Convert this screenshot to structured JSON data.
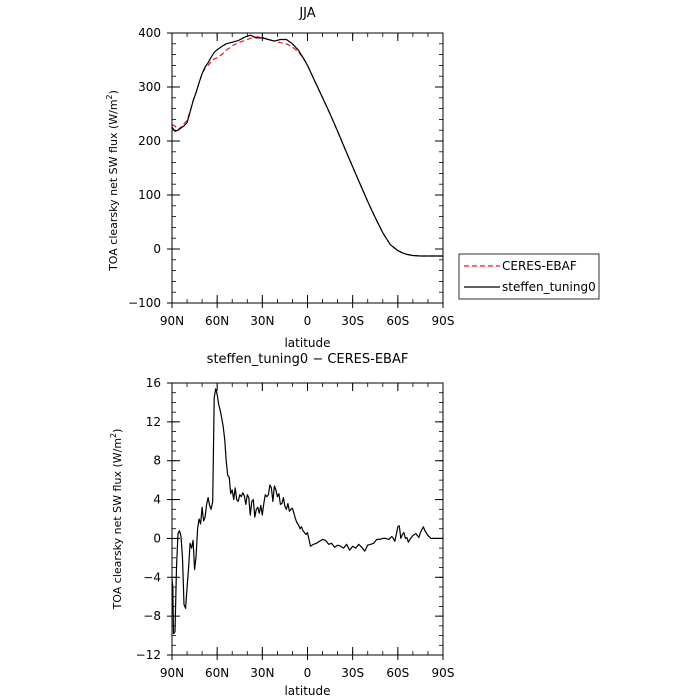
{
  "chart_data": [
    {
      "type": "line",
      "title": "JJA",
      "xlabel": "latitude",
      "ylabel_text": "TOA clearsky net SW flux (W/m",
      "ylabel_sup": "2",
      "ylabel_close": ")",
      "xlim": [
        90,
        -90
      ],
      "ylim": [
        -100,
        400
      ],
      "x_ticks": [
        {
          "value": 90,
          "label": "90N"
        },
        {
          "value": 60,
          "label": "60N"
        },
        {
          "value": 30,
          "label": "30N"
        },
        {
          "value": 0,
          "label": "0"
        },
        {
          "value": -30,
          "label": "30S"
        },
        {
          "value": -60,
          "label": "60S"
        },
        {
          "value": -90,
          "label": "90S"
        }
      ],
      "y_ticks": [
        {
          "value": -100,
          "label": "−100"
        },
        {
          "value": 0,
          "label": "0"
        },
        {
          "value": 100,
          "label": "100"
        },
        {
          "value": 200,
          "label": "200"
        },
        {
          "value": 300,
          "label": "300"
        },
        {
          "value": 400,
          "label": "400"
        }
      ],
      "legend_placement": "right",
      "series": [
        {
          "name": "CERES-EBAF",
          "color": "#e8141e",
          "style": "dashed",
          "x": [
            90,
            88,
            86,
            84,
            82,
            80,
            78,
            76,
            74,
            72,
            70,
            68,
            66,
            64,
            62,
            60,
            57,
            54,
            50,
            46,
            42,
            38,
            34,
            30,
            26,
            22,
            18,
            14,
            10,
            6,
            2,
            0,
            -5,
            -10,
            -15,
            -20,
            -25,
            -30,
            -35,
            -40,
            -45,
            -50,
            -55,
            -60,
            -63,
            -66,
            -70,
            -75,
            -80,
            -85,
            -90
          ],
          "y": [
            230,
            228,
            221,
            226,
            232,
            238,
            255,
            275,
            290,
            308,
            324,
            335,
            340,
            347,
            352,
            354,
            360,
            368,
            376,
            382,
            386,
            390,
            393,
            392,
            388,
            385,
            382,
            380,
            374,
            365,
            350,
            340,
            310,
            280,
            250,
            218,
            185,
            152,
            120,
            88,
            58,
            30,
            8,
            -3,
            -7,
            -10,
            -12,
            -13,
            -13,
            -13,
            -13
          ]
        },
        {
          "name": "steffen_tuning0",
          "color": "#000000",
          "style": "solid",
          "x": [
            90,
            88,
            86,
            84,
            82,
            80,
            78,
            76,
            74,
            72,
            70,
            68,
            66,
            64,
            62,
            60,
            57,
            54,
            50,
            46,
            42,
            38,
            34,
            30,
            26,
            22,
            18,
            14,
            10,
            6,
            2,
            0,
            -5,
            -10,
            -15,
            -20,
            -25,
            -30,
            -35,
            -40,
            -45,
            -50,
            -55,
            -60,
            -63,
            -66,
            -70,
            -75,
            -80,
            -85,
            -90
          ],
          "y": [
            226,
            218,
            220,
            224,
            228,
            234,
            254,
            274,
            290,
            308,
            325,
            337,
            345,
            355,
            364,
            369,
            375,
            380,
            383,
            386,
            392,
            396,
            391,
            391,
            388,
            385,
            388,
            388,
            380,
            368,
            350,
            340,
            310,
            280,
            250,
            218,
            185,
            152,
            120,
            88,
            58,
            30,
            8,
            -3,
            -7,
            -10,
            -12,
            -13,
            -13,
            -13,
            -13
          ]
        }
      ]
    },
    {
      "type": "line",
      "title": "steffen_tuning0 − CERES-EBAF",
      "xlabel": "latitude",
      "ylabel_text": "TOA clearsky net SW flux (W/m",
      "ylabel_sup": "2",
      "ylabel_close": ")",
      "xlim": [
        90,
        -90
      ],
      "ylim": [
        -12,
        16
      ],
      "x_ticks": [
        {
          "value": 90,
          "label": "90N"
        },
        {
          "value": 60,
          "label": "60N"
        },
        {
          "value": 30,
          "label": "30N"
        },
        {
          "value": 0,
          "label": "0"
        },
        {
          "value": -30,
          "label": "30S"
        },
        {
          "value": -60,
          "label": "60S"
        },
        {
          "value": -90,
          "label": "90S"
        }
      ],
      "y_ticks": [
        {
          "value": -12,
          "label": "−12"
        },
        {
          "value": -8,
          "label": "−8"
        },
        {
          "value": -4,
          "label": "−4"
        },
        {
          "value": 0,
          "label": "0"
        },
        {
          "value": 4,
          "label": "4"
        },
        {
          "value": 8,
          "label": "8"
        },
        {
          "value": 12,
          "label": "12"
        },
        {
          "value": 16,
          "label": "16"
        }
      ],
      "series": [
        {
          "color": "#000000",
          "style": "solid",
          "x": [
            90,
            89.5,
            89,
            88,
            87,
            86,
            85,
            84,
            83,
            82,
            81,
            80,
            79,
            78,
            77,
            76,
            75,
            74,
            73,
            72,
            71,
            70,
            69,
            68,
            67,
            66,
            65,
            64,
            63,
            62,
            61,
            60,
            59,
            58,
            57,
            56,
            55,
            54,
            53,
            52,
            51,
            50,
            49,
            48,
            47,
            46,
            45,
            44,
            43,
            42,
            41,
            40,
            39,
            38,
            37,
            36,
            35,
            34,
            33,
            32,
            31,
            30,
            29,
            28,
            27,
            26,
            25,
            24,
            23,
            22,
            21,
            20,
            19,
            18,
            17,
            16,
            15,
            14,
            13,
            12,
            11,
            10,
            9,
            8,
            7,
            6,
            5,
            4,
            3,
            2,
            1,
            0,
            -2,
            -4,
            -6,
            -8,
            -10,
            -12,
            -14,
            -16,
            -18,
            -20,
            -22,
            -24,
            -26,
            -28,
            -30,
            -32,
            -34,
            -36,
            -38,
            -40,
            -42,
            -44,
            -46,
            -48,
            -50,
            -52,
            -54,
            -56,
            -57,
            -58,
            -59,
            -60,
            -61,
            -62,
            -63,
            -64,
            -65,
            -66,
            -67,
            -68,
            -70,
            -72,
            -74,
            -75,
            -76,
            -77,
            -78,
            -80,
            -82,
            -84,
            -86,
            -88,
            -90
          ],
          "y": [
            -4.2,
            -5.0,
            -9.8,
            -9.6,
            -3.0,
            0.5,
            0.8,
            0.2,
            -2.0,
            -6.8,
            -7.2,
            -5.0,
            -3.0,
            -0.5,
            -1.0,
            -0.2,
            -3.2,
            -1.8,
            1.0,
            2.0,
            1.5,
            3.2,
            1.8,
            2.2,
            3.5,
            4.2,
            3.4,
            3.0,
            3.8,
            14.5,
            15.4,
            14.8,
            13.8,
            13.2,
            12.4,
            11.5,
            10.2,
            8.0,
            6.5,
            6.3,
            4.6,
            5.0,
            4.0,
            5.2,
            4.0,
            3.8,
            4.5,
            4.3,
            4.7,
            4.4,
            3.5,
            4.5,
            4.2,
            2.4,
            3.8,
            4.0,
            2.2,
            3.0,
            3.2,
            2.6,
            3.4,
            2.4,
            3.6,
            4.5,
            4.3,
            4.5,
            5.5,
            5.2,
            3.8,
            5.4,
            5.0,
            4.3,
            4.6,
            3.5,
            3.6,
            4.2,
            3.3,
            3.0,
            3.6,
            2.8,
            3.0,
            3.1,
            2.6,
            2.0,
            1.6,
            1.4,
            1.0,
            1.2,
            0.8,
            0.6,
            0.4,
            0.6,
            -0.8,
            -0.6,
            -0.5,
            -0.3,
            -0.1,
            -0.2,
            -0.6,
            -0.5,
            -0.9,
            -0.7,
            -0.8,
            -1.0,
            -0.6,
            -1.2,
            -0.8,
            -1.0,
            -0.6,
            -0.9,
            -1.3,
            -0.7,
            -0.6,
            -0.5,
            -0.1,
            -0.1,
            0.0,
            0.0,
            -0.1,
            0.2,
            0.0,
            -0.3,
            0.4,
            1.2,
            1.3,
            0.0,
            0.4,
            0.6,
            0.0,
            0.1,
            -0.4,
            -0.1,
            0.3,
            0.5,
            0.1,
            0.6,
            0.9,
            1.2,
            0.8,
            0.3,
            0.0,
            0.0,
            0.0,
            0.0,
            0.0
          ]
        }
      ]
    }
  ]
}
